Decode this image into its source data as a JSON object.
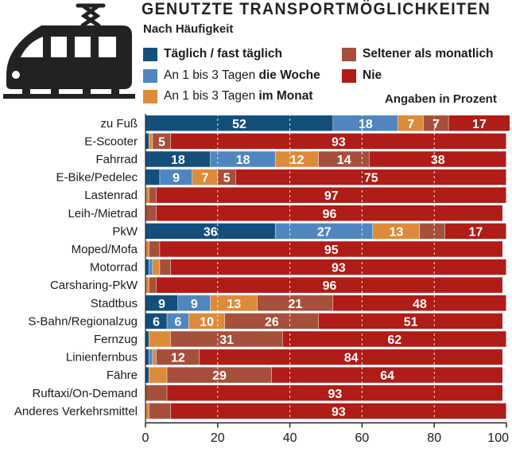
{
  "chart_data": {
    "type": "bar",
    "orientation": "horizontal",
    "stacked": true,
    "title": "GENUTZTE TRANSPORTMÖGLICHKEITEN",
    "subtitle": "Nach Häufigkeit",
    "unit_note": "Angaben in Prozent",
    "xlim": [
      0,
      100
    ],
    "xticks": [
      0,
      20,
      40,
      60,
      80,
      100
    ],
    "categories": [
      "zu Fuß",
      "E-Scooter",
      "Fahrrad",
      "E-Bike/Pedelec",
      "Lastenrad",
      "Leih-/Mietrad",
      "PkW",
      "Moped/Mofa",
      "Motorrad",
      "Carsharing-PkW",
      "Stadtbus",
      "S-Bahn/Regionalzug",
      "Fernzug",
      "Linienfernbus",
      "Fähre",
      "Ruftaxi/On-Demand",
      "Anderes Verkehrsmittel"
    ],
    "series": [
      {
        "name": "Täglich / fast täglich",
        "color": "#144f7c",
        "values": [
          52,
          1,
          18,
          4,
          0,
          0,
          36,
          0,
          1,
          0,
          9,
          6,
          1,
          1,
          1,
          0,
          0
        ]
      },
      {
        "name": "An 1 bis 3 Tagen die Woche",
        "color": "#4f86c0",
        "values": [
          18,
          0,
          18,
          9,
          0,
          0,
          27,
          0,
          1,
          0,
          9,
          6,
          0,
          1,
          0,
          0,
          0
        ]
      },
      {
        "name": "An 1 bis 3 Tagen im Monat",
        "color": "#dd8a3a",
        "values": [
          7,
          1,
          12,
          7,
          1,
          0,
          13,
          1,
          2,
          1,
          13,
          10,
          6,
          1,
          5,
          0,
          1
        ]
      },
      {
        "name": "Seltener als monatlich",
        "color": "#a6503c",
        "values": [
          7,
          5,
          14,
          5,
          2,
          3,
          7,
          3,
          3,
          2,
          21,
          26,
          31,
          12,
          29,
          6,
          6
        ]
      },
      {
        "name": "Nie",
        "color": "#b01c17",
        "values": [
          17,
          93,
          38,
          75,
          97,
          96,
          17,
          95,
          93,
          96,
          48,
          51,
          62,
          84,
          64,
          93,
          93
        ]
      }
    ],
    "data_labels": [
      [
        "52",
        "18",
        "7",
        "7",
        "17"
      ],
      [
        "",
        "",
        "",
        "5",
        "93"
      ],
      [
        "18",
        "18",
        "12",
        "14",
        "38"
      ],
      [
        "",
        "9",
        "7",
        "5",
        "75"
      ],
      [
        "",
        "",
        "",
        "",
        "97"
      ],
      [
        "",
        "",
        "",
        "",
        "96"
      ],
      [
        "36",
        "27",
        "13",
        "",
        "17"
      ],
      [
        "",
        "",
        "",
        "",
        "95"
      ],
      [
        "",
        "",
        "",
        "",
        "93"
      ],
      [
        "",
        "",
        "",
        "",
        "96"
      ],
      [
        "9",
        "9",
        "13",
        "21",
        "48"
      ],
      [
        "6",
        "6",
        "10",
        "26",
        "51"
      ],
      [
        "",
        "",
        "",
        "31",
        "62"
      ],
      [
        "",
        "",
        "",
        "12",
        "84"
      ],
      [
        "",
        "",
        "",
        "29",
        "64"
      ],
      [
        "",
        "",
        "",
        "",
        "93"
      ],
      [
        "",
        "",
        "",
        "",
        "93"
      ]
    ],
    "grid": true
  },
  "legend": {
    "daily": {
      "text": "Täglich / fast täglich",
      "color": "#144f7c"
    },
    "weekly": {
      "text": "An 1 bis 3 Tagen ",
      "bold": "die Woche",
      "color": "#4f86c0"
    },
    "monthly": {
      "text": "An 1 bis 3 Tagen ",
      "bold": "im Monat",
      "color": "#dd8a3a"
    },
    "rarely": {
      "text": "Seltener als monatlich",
      "color": "#a6503c"
    },
    "never": {
      "text": "Nie",
      "color": "#b01c17"
    }
  },
  "icon": "train-icon"
}
